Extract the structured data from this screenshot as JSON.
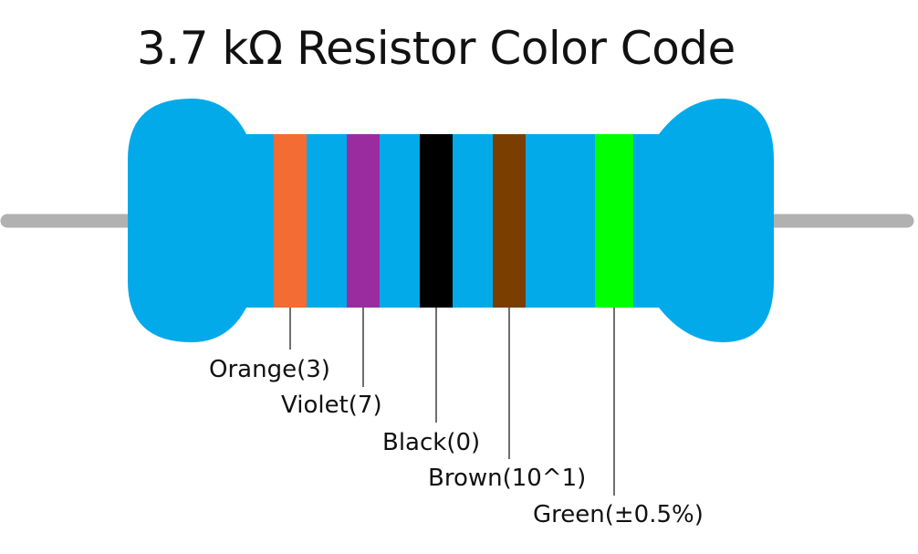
{
  "title": "3.7 kΩ Resistor Color Code",
  "colors": {
    "body": "#02aaea",
    "lead": "#b1b1b1",
    "leader_line": "#111111"
  },
  "bands": [
    {
      "color_name": "Orange",
      "hex": "#f26c33",
      "label": "Orange(3)"
    },
    {
      "color_name": "Violet",
      "hex": "#9a2ca0",
      "label": "Violet(7)"
    },
    {
      "color_name": "Black",
      "hex": "#000000",
      "label": "Black(0)"
    },
    {
      "color_name": "Brown",
      "hex": "#7a3f00",
      "label": "Brown(10^1)"
    },
    {
      "color_name": "Green",
      "hex": "#00ff00",
      "label": "Green(±0.5%)"
    }
  ]
}
